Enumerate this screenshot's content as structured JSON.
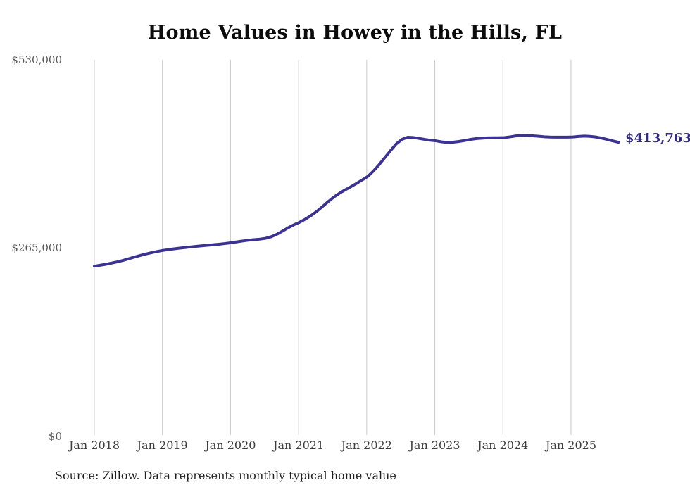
{
  "page": {
    "background_color": "#ffffff"
  },
  "chart_data": {
    "type": "line",
    "title": "Home Values in Howey in the Hills, FL",
    "series_name": "Monthly typical home value",
    "unit": "USD",
    "frequency": "monthly",
    "x_monthly_start": "2018-01",
    "x_monthly_end": "2025-09",
    "x_ticks": [
      "Jan 2018",
      "Jan 2019",
      "Jan 2020",
      "Jan 2021",
      "Jan 2022",
      "Jan 2023",
      "Jan 2024",
      "Jan 2025"
    ],
    "y_ticks": [
      "$0",
      "$265,000",
      "$530,000"
    ],
    "ylim": [
      0,
      530000
    ],
    "grid": "vertical-only",
    "legend": "none",
    "line_color": "#3b3291",
    "grid_color": "#c9c9c9",
    "end_label": "$413,763",
    "end_value": 413763,
    "source_note": "Source: Zillow. Data represents monthly typical home value",
    "values": [
      239000,
      240300,
      241700,
      243300,
      245100,
      247100,
      249400,
      251800,
      254000,
      256100,
      258000,
      259700,
      261200,
      262400,
      263500,
      264500,
      265400,
      266300,
      267100,
      267900,
      268600,
      269300,
      270100,
      271000,
      272100,
      273300,
      274500,
      275600,
      276400,
      277100,
      278200,
      280400,
      283800,
      288300,
      293100,
      297300,
      300800,
      305200,
      310200,
      316000,
      322700,
      329700,
      336200,
      341700,
      346500,
      350900,
      355600,
      360500,
      365600,
      373200,
      382200,
      392200,
      402000,
      411400,
      417800,
      420800,
      420400,
      419200,
      417800,
      416600,
      415700,
      414300,
      413500,
      413900,
      414900,
      416200,
      417700,
      418800,
      419500,
      419900,
      420100,
      420100,
      420300,
      421400,
      422700,
      423400,
      423300,
      422800,
      422200,
      421500,
      421100,
      420900,
      420900,
      421000,
      421200,
      421900,
      422400,
      422100,
      421200,
      419700,
      417800,
      415700,
      413763
    ]
  }
}
